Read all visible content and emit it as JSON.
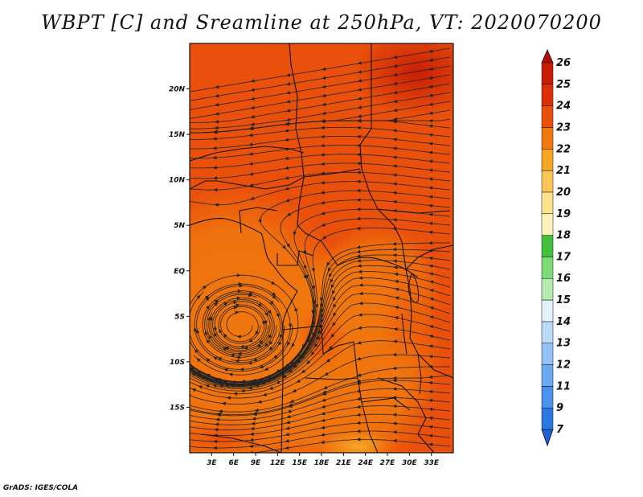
{
  "title": "WBPT [C] and Sreamline at 250hPa, VT: 2020070200",
  "credit": "GrADS: IGES/COLA",
  "map": {
    "lon_range": [
      0,
      36
    ],
    "lat_range": [
      -20,
      25
    ],
    "lat_ticks": [
      {
        "value": 20,
        "label": "20N"
      },
      {
        "value": 15,
        "label": "15N"
      },
      {
        "value": 10,
        "label": "10N"
      },
      {
        "value": 5,
        "label": "5N"
      },
      {
        "value": 0,
        "label": "EQ"
      },
      {
        "value": -5,
        "label": "5S"
      },
      {
        "value": -10,
        "label": "10S"
      },
      {
        "value": -15,
        "label": "15S"
      }
    ],
    "lon_ticks": [
      {
        "value": 3,
        "label": "3E"
      },
      {
        "value": 6,
        "label": "6E"
      },
      {
        "value": 9,
        "label": "9E"
      },
      {
        "value": 12,
        "label": "12E"
      },
      {
        "value": 15,
        "label": "15E"
      },
      {
        "value": 18,
        "label": "18E"
      },
      {
        "value": 21,
        "label": "21E"
      },
      {
        "value": 24,
        "label": "24E"
      },
      {
        "value": 27,
        "label": "27E"
      },
      {
        "value": 30,
        "label": "30E"
      },
      {
        "value": 33,
        "label": "33E"
      }
    ],
    "vortex_center": {
      "lon": 7,
      "lat": -6
    }
  },
  "colorbar": {
    "labels": [
      "7",
      "9",
      "11",
      "12",
      "13",
      "14",
      "15",
      "16",
      "17",
      "18",
      "19",
      "20",
      "21",
      "22",
      "23",
      "24",
      "25",
      "26"
    ],
    "colors": [
      "#1f5fd6",
      "#2c78e3",
      "#4a92ec",
      "#6ba9f2",
      "#93c3f6",
      "#bcdaf8",
      "#e2f2fb",
      "#b6ecb0",
      "#7ddc78",
      "#42c13c",
      "#fbf3b8",
      "#fde28a",
      "#fcc656",
      "#f6a623",
      "#f0760e",
      "#e9500b",
      "#dc2f08",
      "#c81d07",
      "#b40c05"
    ]
  }
}
